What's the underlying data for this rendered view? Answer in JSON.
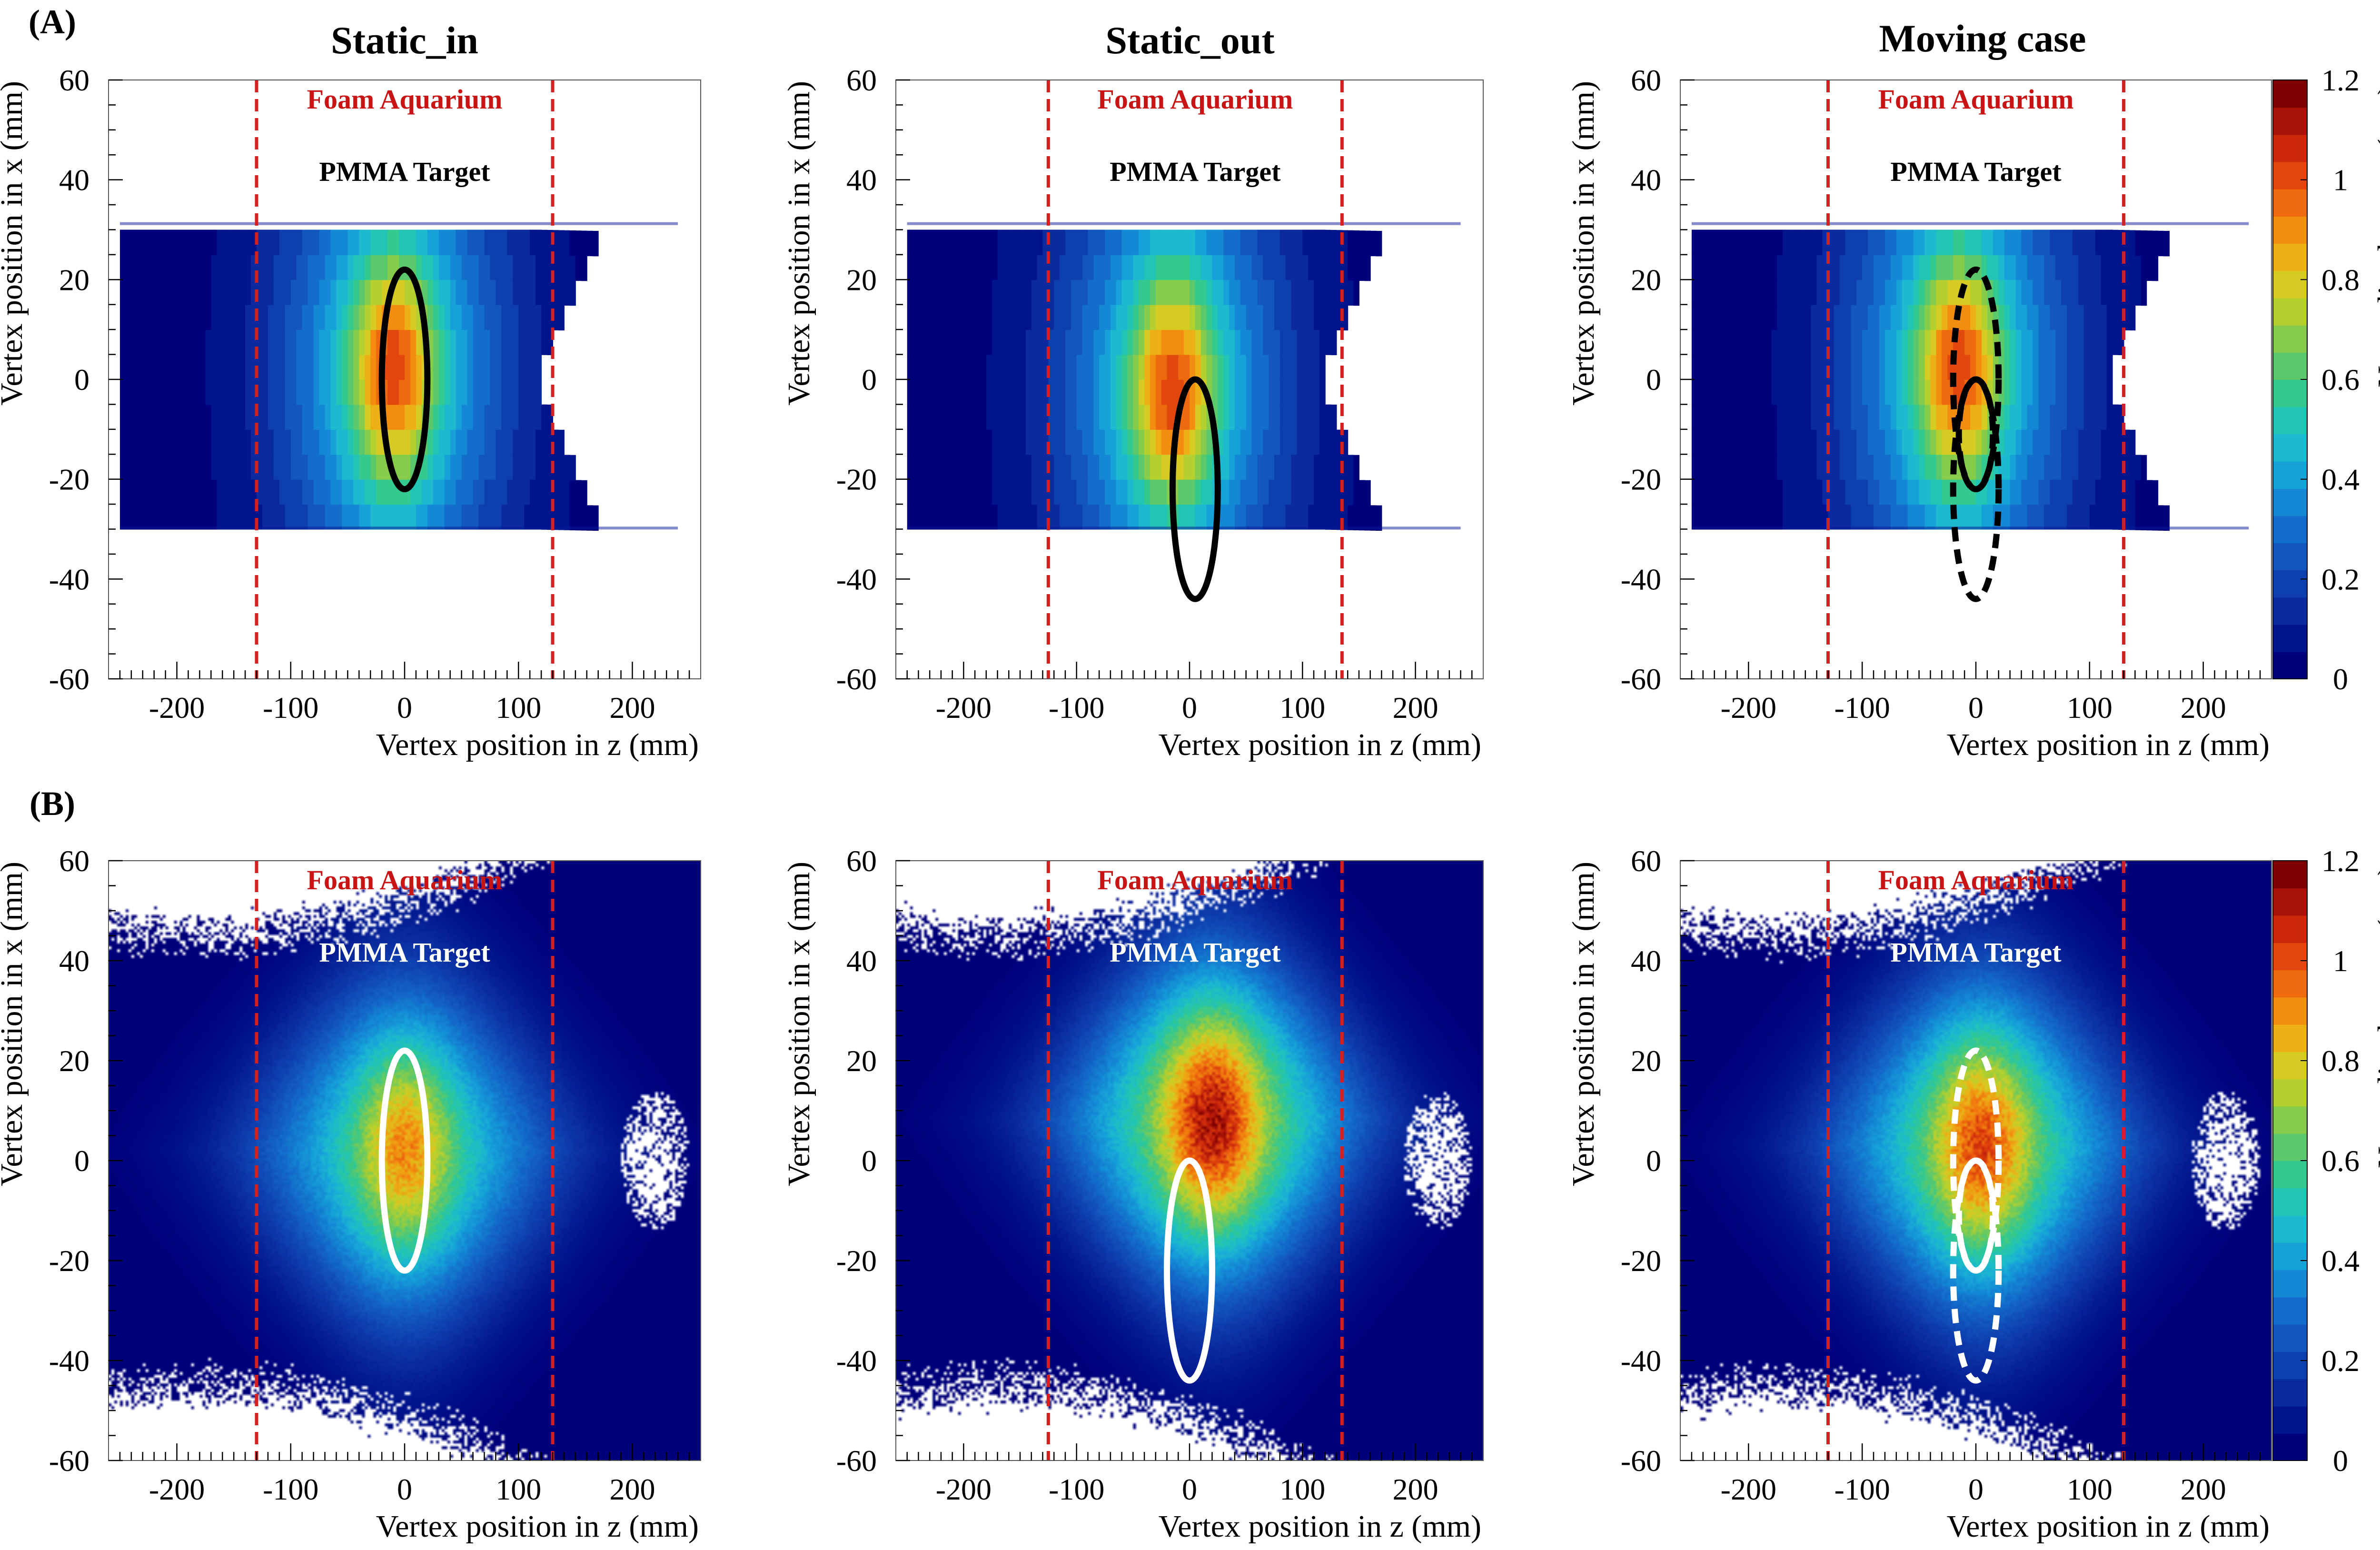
{
  "figure": {
    "row_labels": [
      "(A)",
      "(B)"
    ],
    "column_titles": [
      "Static_in",
      "Static_out",
      "Moving case"
    ]
  },
  "colors": {
    "boundary_lines": "#d42020",
    "aquarium_label": "#c81414",
    "background_plot_fill": "#00008b",
    "palette": [
      "#00007a",
      "#00148c",
      "#0a2a9e",
      "#0e3fae",
      "#1256be",
      "#136ecb",
      "#1488d4",
      "#16a2d9",
      "#1cb9cf",
      "#22c4b4",
      "#34c98f",
      "#5cc86c",
      "#86cc4a",
      "#b4d02e",
      "#d6cb22",
      "#ecb016",
      "#f28d10",
      "#ee6a0e",
      "#e2470d",
      "#cc290c",
      "#a8120a",
      "#7c0000"
    ]
  },
  "colorbar": {
    "label": "Normalized counts (a.u.)",
    "ticks": [
      "1.2",
      "1",
      "0.8",
      "0.6",
      "0.4",
      "0.2",
      "0"
    ]
  },
  "chart_data": [
    {
      "type": "heatmap",
      "panel": "A1",
      "row": "(A)",
      "title": "Static_in",
      "xlabel": "Vertex position in z (mm)",
      "ylabel": "Vertex position in x (mm)",
      "xlim": [
        -260,
        260
      ],
      "ylim": [
        -60,
        60
      ],
      "xticks": [
        -200,
        -100,
        0,
        100,
        200
      ],
      "yticks": [
        -60,
        -40,
        -20,
        0,
        20,
        40,
        60
      ],
      "region_labels": [
        {
          "text": "Foam Aquarium",
          "color": "red"
        },
        {
          "text": "PMMA Target",
          "color": "black"
        }
      ],
      "boundary_lines_z": [
        -130,
        130
      ],
      "distribution": {
        "style": "binned",
        "hotspot": {
          "z": -10,
          "x": 2
        },
        "x_range": [
          -30,
          30
        ],
        "max": 1.0
      },
      "ellipses": [
        {
          "z_center": 0,
          "x_center": 0,
          "z_halfwidth": 20,
          "x_halfheight": 22,
          "dashed": false,
          "color": "black"
        }
      ]
    },
    {
      "type": "heatmap",
      "panel": "A2",
      "row": "(A)",
      "title": "Static_out",
      "xlabel": "Vertex position in z (mm)",
      "ylabel": "Vertex position in x (mm)",
      "xlim": [
        -260,
        260
      ],
      "ylim": [
        -60,
        60
      ],
      "xticks": [
        -200,
        -100,
        0,
        100,
        200
      ],
      "yticks": [
        -60,
        -40,
        -20,
        0,
        20,
        40,
        60
      ],
      "region_labels": [
        {
          "text": "Foam Aquarium",
          "color": "red"
        },
        {
          "text": "PMMA Target",
          "color": "black"
        }
      ],
      "boundary_lines_z": [
        -125,
        135
      ],
      "distribution": {
        "style": "binned",
        "hotspot": {
          "z": -15,
          "x": -2
        },
        "x_range": [
          -30,
          30
        ],
        "max": 1.0
      },
      "ellipses": [
        {
          "z_center": 5,
          "x_center": -22,
          "z_halfwidth": 20,
          "x_halfheight": 22,
          "dashed": false,
          "color": "black"
        }
      ]
    },
    {
      "type": "heatmap",
      "panel": "A3",
      "row": "(A)",
      "title": "Moving case",
      "xlabel": "Vertex position in z (mm)",
      "ylabel": "Vertex position in x (mm)",
      "xlim": [
        -260,
        260
      ],
      "ylim": [
        -60,
        60
      ],
      "xticks": [
        -200,
        -100,
        0,
        100,
        200
      ],
      "yticks": [
        -60,
        -40,
        -20,
        0,
        20,
        40,
        60
      ],
      "region_labels": [
        {
          "text": "Foam Aquarium",
          "color": "red"
        },
        {
          "text": "PMMA Target",
          "color": "black"
        }
      ],
      "boundary_lines_z": [
        -130,
        130
      ],
      "distribution": {
        "style": "binned",
        "hotspot": {
          "z": -15,
          "x": 2
        },
        "x_range": [
          -30,
          30
        ],
        "max": 1.0
      },
      "ellipses": [
        {
          "z_center": 0,
          "x_center": 0,
          "z_halfwidth": 20,
          "x_halfheight": 22,
          "dashed": true,
          "color": "black"
        },
        {
          "z_center": 0,
          "x_center": -22,
          "z_halfwidth": 20,
          "x_halfheight": 22,
          "dashed": true,
          "color": "black"
        },
        {
          "z_center": 0,
          "x_center": -11,
          "z_halfwidth": 15,
          "x_halfheight": 11,
          "dashed": true,
          "color": "black"
        }
      ],
      "colorbar_range": [
        0,
        1.2
      ]
    },
    {
      "type": "heatmap",
      "panel": "B1",
      "row": "(B)",
      "xlabel": "Vertex position in z (mm)",
      "ylabel": "Vertex position in x (mm)",
      "xlim": [
        -260,
        260
      ],
      "ylim": [
        -60,
        60
      ],
      "xticks": [
        -200,
        -100,
        0,
        100,
        200
      ],
      "yticks": [
        -60,
        -40,
        -20,
        0,
        20,
        40,
        60
      ],
      "region_labels": [
        {
          "text": "Foam Aquarium",
          "color": "red"
        },
        {
          "text": "PMMA Target",
          "color": "white"
        }
      ],
      "boundary_lines_z": [
        -130,
        130
      ],
      "distribution": {
        "style": "smooth",
        "hotspot": {
          "z": 0,
          "x": 2
        },
        "max": 0.8
      },
      "ellipses": [
        {
          "z_center": 0,
          "x_center": 0,
          "z_halfwidth": 20,
          "x_halfheight": 22,
          "dashed": false,
          "color": "white"
        }
      ]
    },
    {
      "type": "heatmap",
      "panel": "B2",
      "row": "(B)",
      "xlabel": "Vertex position in z (mm)",
      "ylabel": "Vertex position in x (mm)",
      "xlim": [
        -260,
        260
      ],
      "ylim": [
        -60,
        60
      ],
      "xticks": [
        -200,
        -100,
        0,
        100,
        200
      ],
      "yticks": [
        -60,
        -40,
        -20,
        0,
        20,
        40,
        60
      ],
      "region_labels": [
        {
          "text": "Foam Aquarium",
          "color": "red"
        },
        {
          "text": "PMMA Target",
          "color": "white"
        }
      ],
      "boundary_lines_z": [
        -125,
        135
      ],
      "distribution": {
        "style": "smooth",
        "hotspot": {
          "z": 20,
          "x": 8
        },
        "max": 1.0
      },
      "ellipses": [
        {
          "z_center": 0,
          "x_center": -22,
          "z_halfwidth": 20,
          "x_halfheight": 22,
          "dashed": false,
          "color": "white"
        }
      ]
    },
    {
      "type": "heatmap",
      "panel": "B3",
      "row": "(B)",
      "xlabel": "Vertex position in z (mm)",
      "ylabel": "Vertex position in x (mm)",
      "xlim": [
        -260,
        260
      ],
      "ylim": [
        -60,
        60
      ],
      "xticks": [
        -200,
        -100,
        0,
        100,
        200
      ],
      "yticks": [
        -60,
        -40,
        -20,
        0,
        20,
        40,
        60
      ],
      "region_labels": [
        {
          "text": "Foam Aquarium",
          "color": "red"
        },
        {
          "text": "PMMA Target",
          "color": "white"
        }
      ],
      "boundary_lines_z": [
        -130,
        130
      ],
      "distribution": {
        "style": "smooth",
        "hotspot": {
          "z": 5,
          "x": 3
        },
        "max": 0.9
      },
      "ellipses": [
        {
          "z_center": 0,
          "x_center": 0,
          "z_halfwidth": 20,
          "x_halfheight": 22,
          "dashed": true,
          "color": "white"
        },
        {
          "z_center": 0,
          "x_center": -22,
          "z_halfwidth": 20,
          "x_halfheight": 22,
          "dashed": true,
          "color": "white"
        },
        {
          "z_center": 0,
          "x_center": -11,
          "z_halfwidth": 15,
          "x_halfheight": 11,
          "dashed": true,
          "color": "white"
        }
      ],
      "colorbar_range": [
        0,
        1.2
      ]
    }
  ]
}
